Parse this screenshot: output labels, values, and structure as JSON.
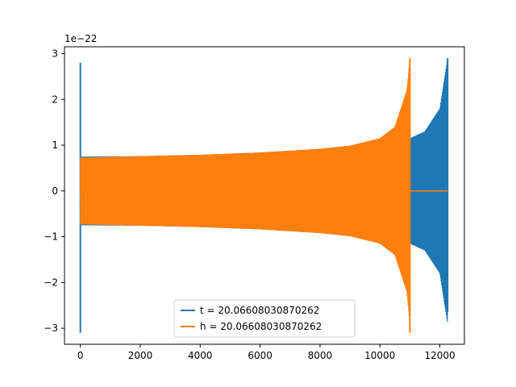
{
  "chart_data": {
    "type": "line",
    "title": "",
    "xlabel": "",
    "ylabel": "",
    "y_offset_label": "1e−22",
    "xlim": [
      -530,
      12820
    ],
    "ylim": [
      -3.35,
      3.15
    ],
    "x_ticks": [
      0,
      2000,
      4000,
      6000,
      8000,
      10000,
      12000
    ],
    "y_ticks": [
      -3,
      -2,
      -1,
      0,
      1,
      2,
      3
    ],
    "x_tick_labels": [
      "0",
      "2000",
      "4000",
      "6000",
      "8000",
      "10000",
      "12000"
    ],
    "y_tick_labels": [
      "−3",
      "−2",
      "−1",
      "0",
      "1",
      "2",
      "3"
    ],
    "grid": false,
    "legend_position": "lower center",
    "series": [
      {
        "name": "t = 20.06608030870262",
        "color": "#1f77b4",
        "x_range": [
          0,
          12260
        ],
        "envelope": [
          [
            0,
            0.75
          ],
          [
            2000,
            0.76
          ],
          [
            4000,
            0.79
          ],
          [
            6000,
            0.84
          ],
          [
            8000,
            0.92
          ],
          [
            9000,
            0.99
          ],
          [
            10000,
            1.07
          ],
          [
            11000,
            1.15
          ],
          [
            11500,
            1.3
          ],
          [
            12000,
            1.8
          ],
          [
            12260,
            2.9
          ]
        ],
        "spikes": [
          {
            "x": 0,
            "max": 2.8,
            "min": -3.1
          },
          {
            "x": 12260,
            "max": 2.9,
            "min": -2.65
          }
        ]
      },
      {
        "name": "h = 20.06608030870262",
        "color": "#ff7f0e",
        "x_range": [
          0,
          11000
        ],
        "envelope": [
          [
            0,
            0.73
          ],
          [
            2000,
            0.76
          ],
          [
            4000,
            0.79
          ],
          [
            6000,
            0.84
          ],
          [
            8000,
            0.92
          ],
          [
            9000,
            0.99
          ],
          [
            10000,
            1.15
          ],
          [
            10500,
            1.4
          ],
          [
            10900,
            2.2
          ],
          [
            11000,
            2.9
          ]
        ],
        "spikes": [
          {
            "x": 11000,
            "max": 2.9,
            "min": -3.1
          }
        ],
        "flat_after": [
          11000,
          12260
        ]
      }
    ]
  }
}
